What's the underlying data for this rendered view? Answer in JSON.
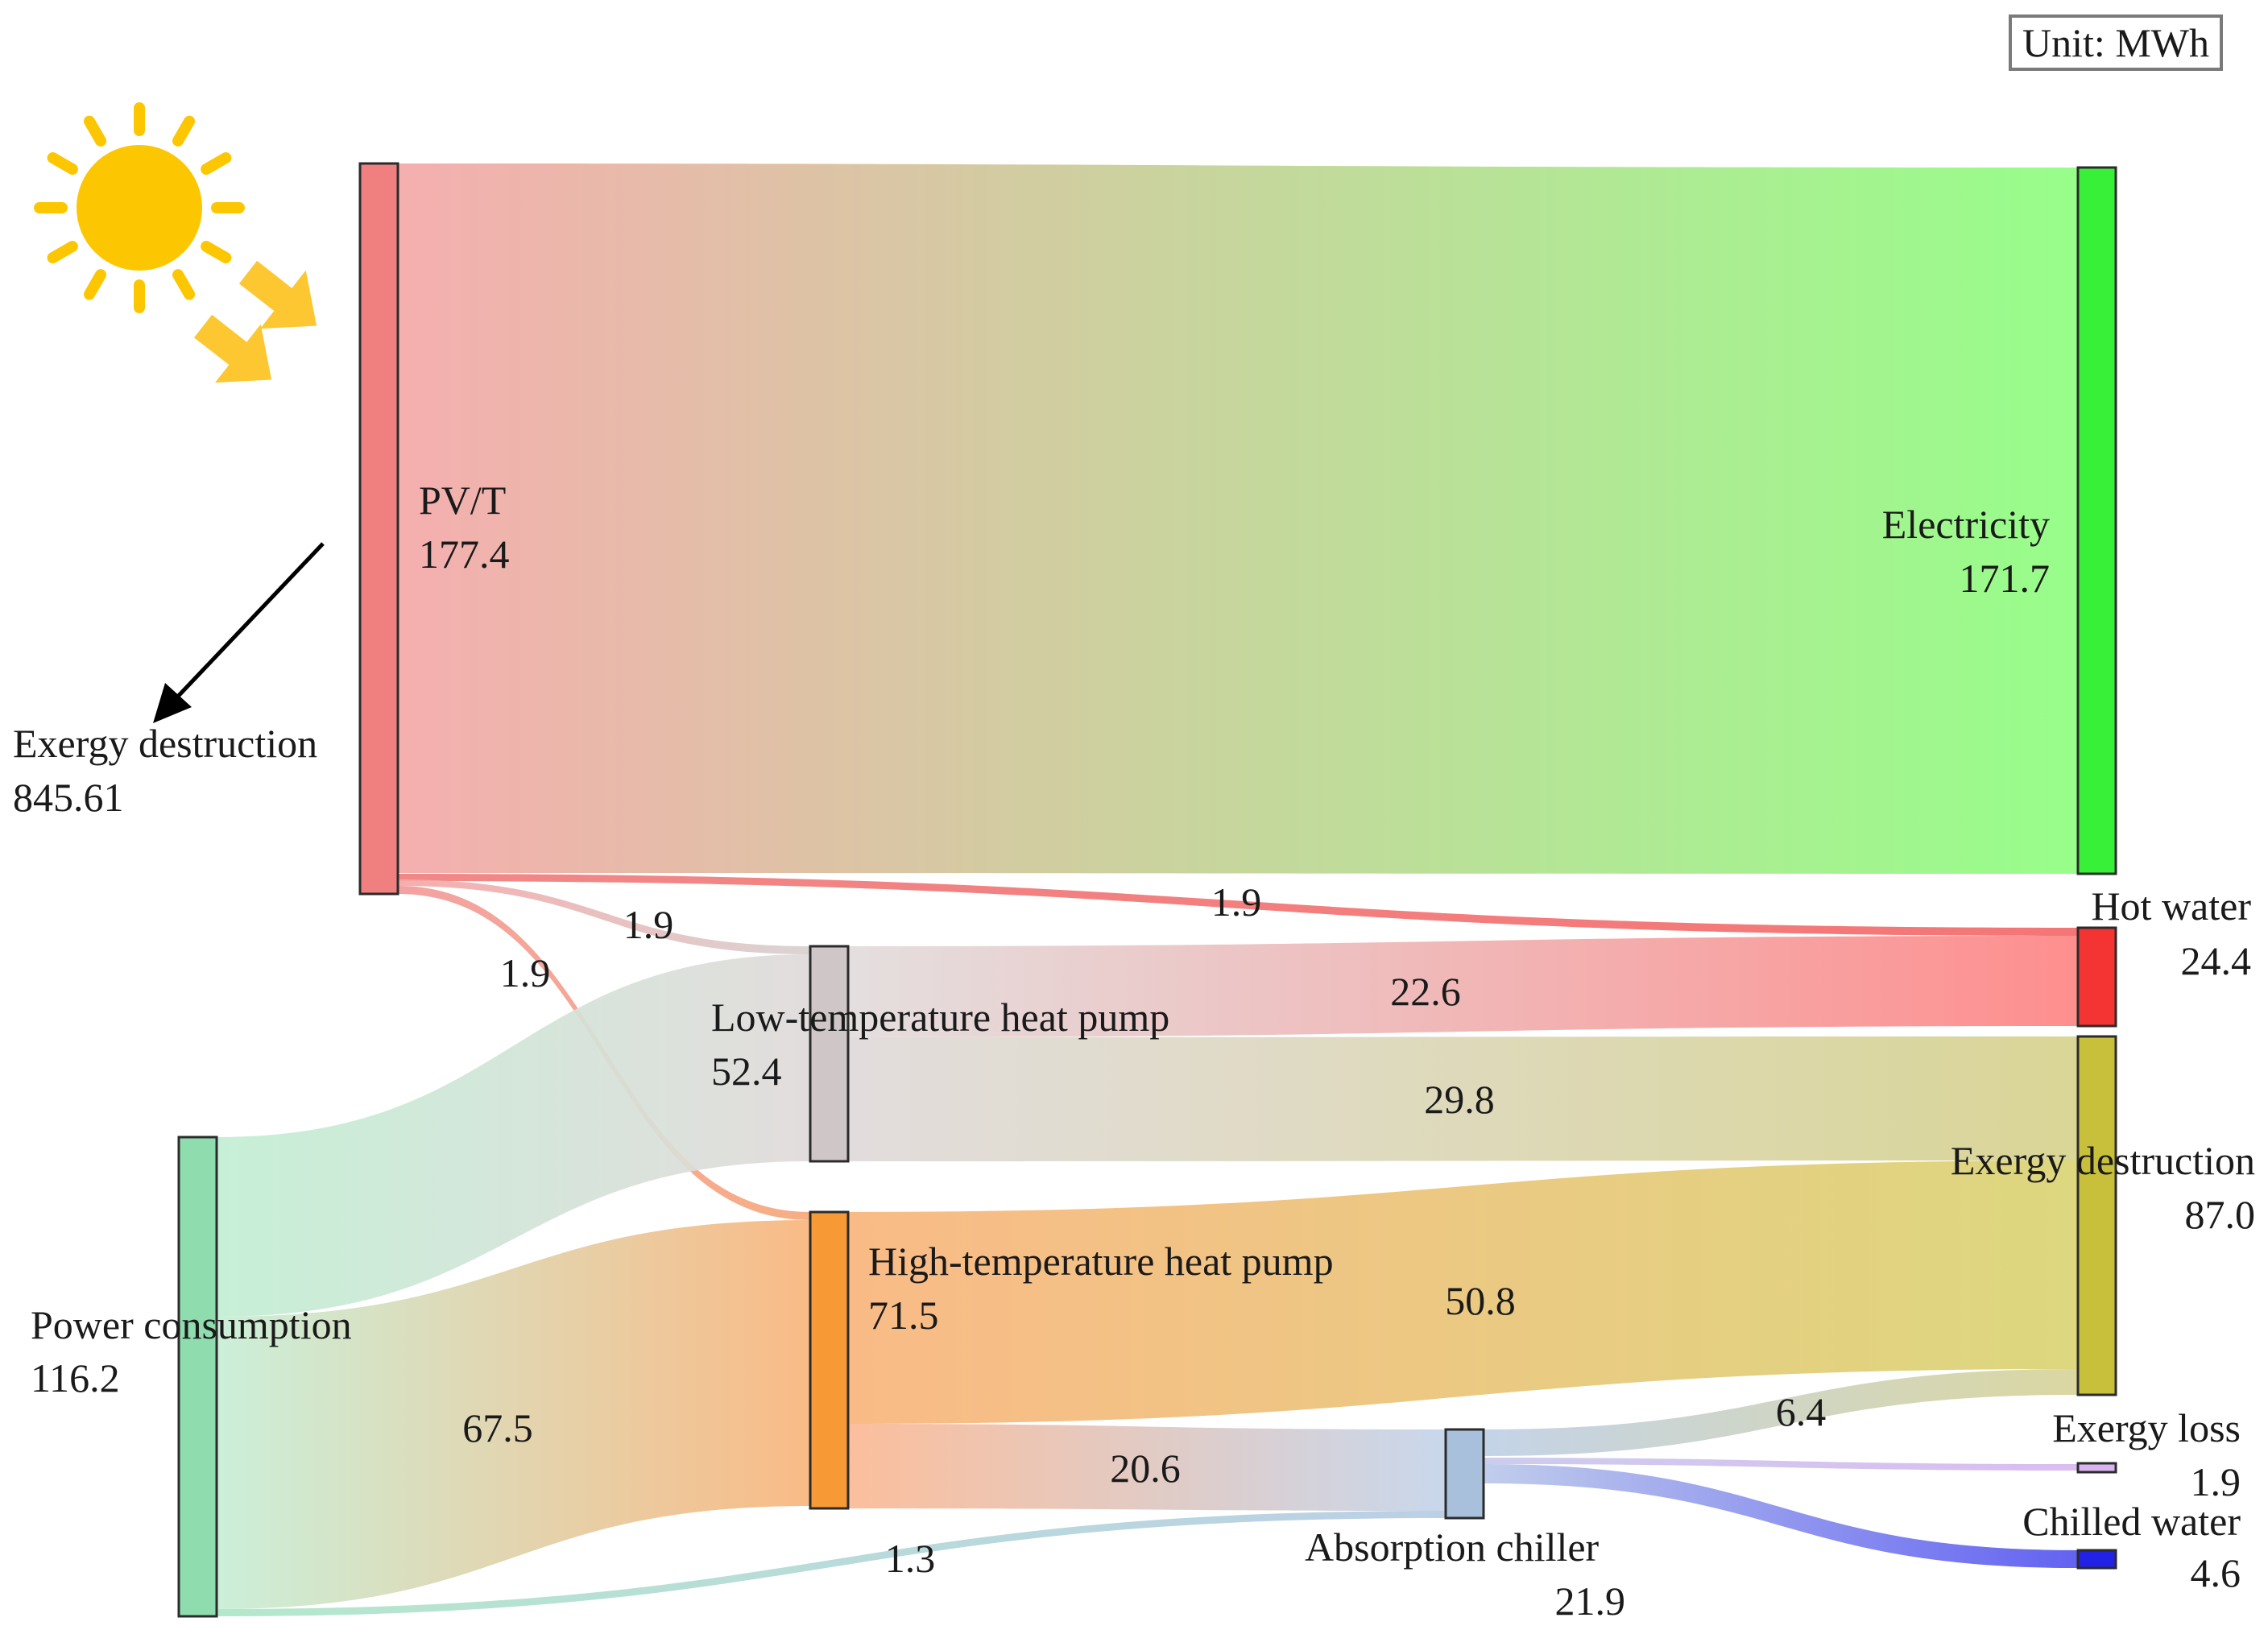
{
  "unit_label": "Unit: MWh",
  "chart_data": {
    "type": "sankey",
    "title": "",
    "unit": "MWh",
    "colors": {
      "pvt": "#f08080",
      "power": "#8fdcae",
      "lowhp": "#cfc7c7",
      "highhp": "#f79a35",
      "chiller": "#a9c0dc",
      "electricity": "#38f038",
      "hotwater": "#f43333",
      "exdest": "#c8c03a",
      "exloss": "#d8b4f0",
      "chilled": "#2222e6",
      "sun": "#fcc700",
      "arrow_fill": "#fcc730"
    },
    "nodes": [
      {
        "id": "pvt",
        "name": "PV/T",
        "value": "177.4"
      },
      {
        "id": "power",
        "name": "Power consumption",
        "value": "116.2"
      },
      {
        "id": "lowhp",
        "name": "Low-temperature heat pump",
        "value": "52.4"
      },
      {
        "id": "highhp",
        "name": "High-temperature heat pump",
        "value": "71.5"
      },
      {
        "id": "chiller",
        "name": "Absorption chiller",
        "value": "21.9"
      },
      {
        "id": "electricity",
        "name": "Electricity",
        "value": "171.7"
      },
      {
        "id": "hotwater",
        "name": "Hot water",
        "value": "24.4"
      },
      {
        "id": "exdest",
        "name": "Exergy destruction",
        "value": "87.0"
      },
      {
        "id": "exloss",
        "name": "Exergy loss",
        "value": "1.9"
      },
      {
        "id": "chilled",
        "name": "Chilled water",
        "value": "4.6"
      }
    ],
    "links": [
      {
        "source": "pvt",
        "target": "electricity",
        "value": 171.7,
        "label": ""
      },
      {
        "source": "pvt",
        "target": "hotwater",
        "value": 1.9,
        "label": "1.9"
      },
      {
        "source": "pvt",
        "target": "lowhp",
        "value": 1.9,
        "label": "1.9"
      },
      {
        "source": "pvt",
        "target": "highhp",
        "value": 1.9,
        "label": "1.9"
      },
      {
        "source": "power",
        "target": "lowhp",
        "value": 47.3,
        "label": ""
      },
      {
        "source": "power",
        "target": "highhp",
        "value": 67.5,
        "label": "67.5"
      },
      {
        "source": "power",
        "target": "chiller",
        "value": 1.3,
        "label": "1.3"
      },
      {
        "source": "lowhp",
        "target": "hotwater",
        "value": 22.6,
        "label": "22.6"
      },
      {
        "source": "lowhp",
        "target": "exdest",
        "value": 29.8,
        "label": "29.8"
      },
      {
        "source": "highhp",
        "target": "exdest",
        "value": 50.8,
        "label": "50.8"
      },
      {
        "source": "highhp",
        "target": "chiller",
        "value": 20.6,
        "label": "20.6"
      },
      {
        "source": "chiller",
        "target": "exdest",
        "value": 6.4,
        "label": "6.4"
      },
      {
        "source": "chiller",
        "target": "exloss",
        "value": 1.9,
        "label": ""
      },
      {
        "source": "chiller",
        "target": "chilled",
        "value": 4.6,
        "label": ""
      }
    ],
    "external": {
      "name": "Exergy destruction",
      "value": "845.61"
    }
  }
}
